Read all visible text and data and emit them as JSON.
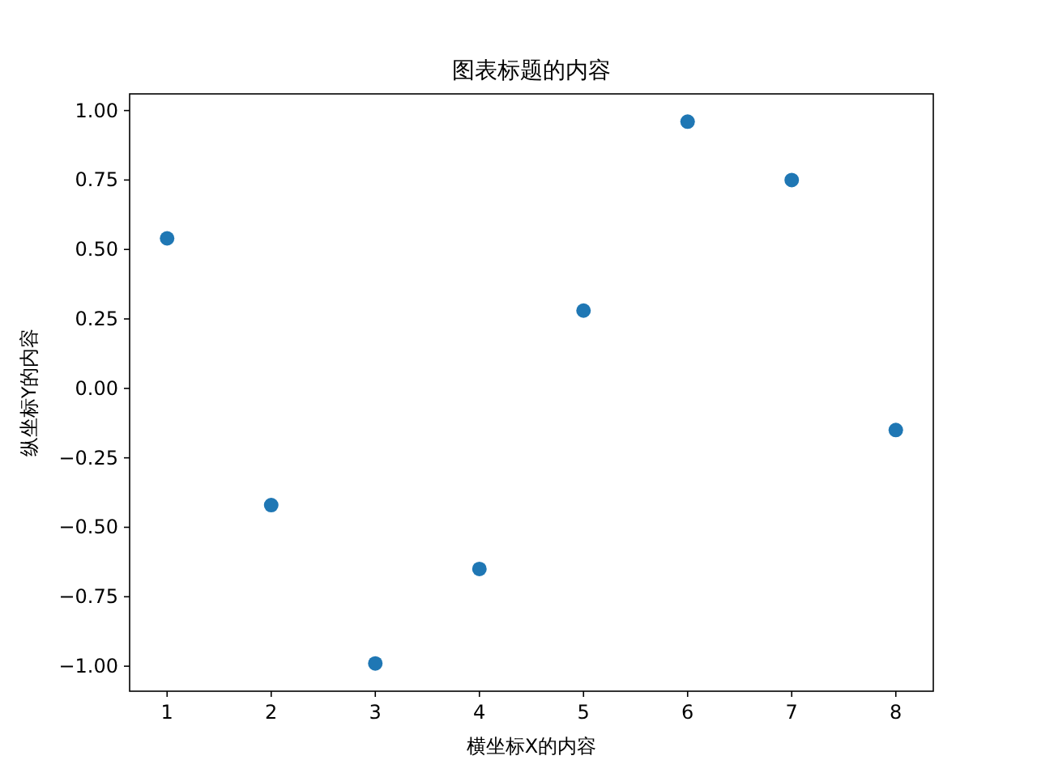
{
  "chart_data": {
    "type": "scatter",
    "title": "图表标题的内容",
    "xlabel": "横坐标X的内容",
    "ylabel": "纵坐标Y的内容",
    "x": [
      1,
      2,
      3,
      4,
      5,
      6,
      7,
      8
    ],
    "series": [
      {
        "color": "#1f77b4",
        "values": [
          0.54,
          -0.42,
          -0.99,
          -0.65,
          0.28,
          0.96,
          0.75,
          -0.15
        ]
      }
    ],
    "xlim": [
      0.64,
      8.36
    ],
    "ylim": [
      -1.09,
      1.06
    ],
    "xticks": [
      1,
      2,
      3,
      4,
      5,
      6,
      7,
      8
    ],
    "yticks": [
      {
        "value": -1,
        "label": "−1.00"
      },
      {
        "value": -0.75,
        "label": "−0.75"
      },
      {
        "value": -0.5,
        "label": "−0.50"
      },
      {
        "value": -0.25,
        "label": "−0.25"
      },
      {
        "value": 0,
        "label": "0.00"
      },
      {
        "value": 0.25,
        "label": "0.25"
      },
      {
        "value": 0.5,
        "label": "0.50"
      },
      {
        "value": 0.75,
        "label": "0.75"
      },
      {
        "value": 1,
        "label": "1.00"
      }
    ],
    "marker": "circle",
    "grid": false
  }
}
